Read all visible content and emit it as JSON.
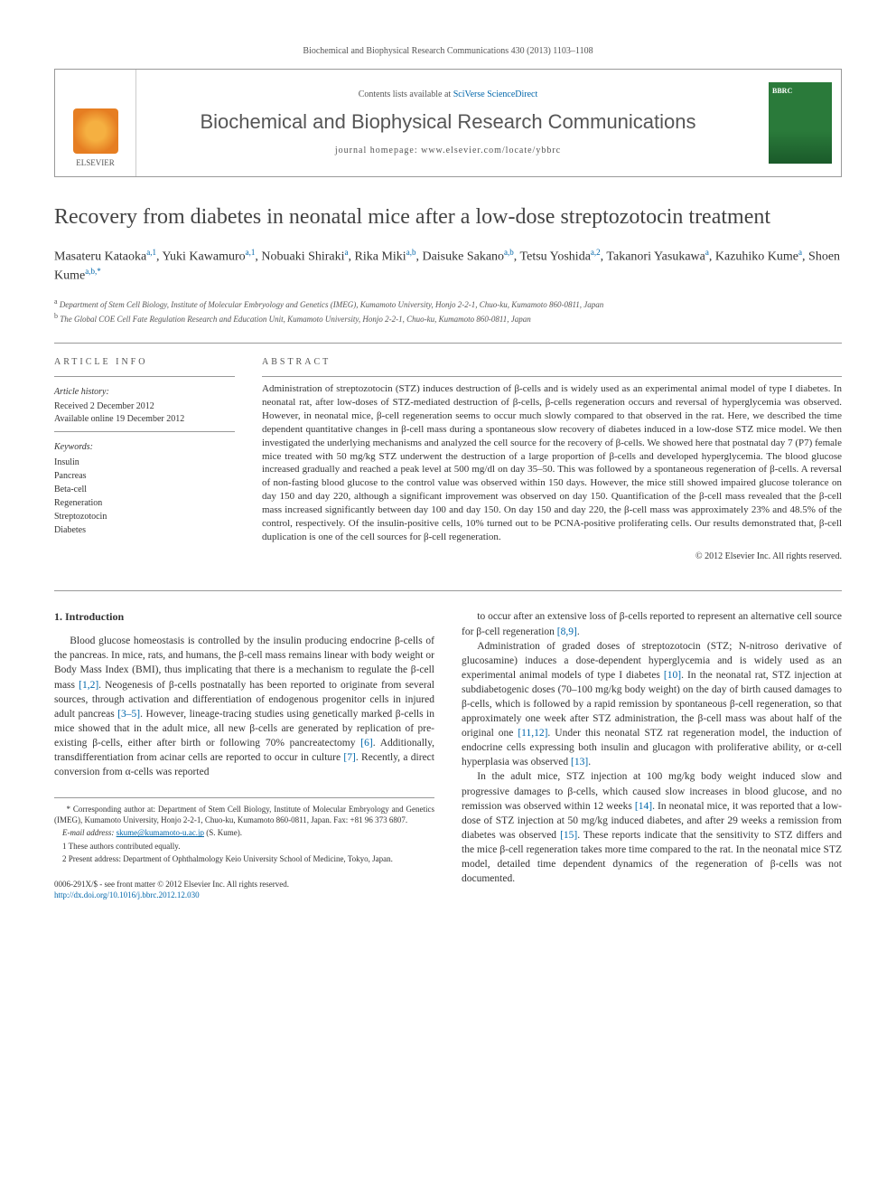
{
  "header": {
    "citation": "Biochemical and Biophysical Research Communications 430 (2013) 1103–1108"
  },
  "masthead": {
    "contents_prefix": "Contents lists available at ",
    "contents_link": "SciVerse ScienceDirect",
    "journal_name": "Biochemical and Biophysical Research Communications",
    "homepage_prefix": "journal homepage: ",
    "homepage_url": "www.elsevier.com/locate/ybbrc",
    "publisher": "ELSEVIER",
    "cover_label": "BBRC"
  },
  "article": {
    "title": "Recovery from diabetes in neonatal mice after a low-dose streptozotocin treatment",
    "authors": [
      {
        "name": "Masateru Kataoka",
        "sup": "a,1"
      },
      {
        "name": "Yuki Kawamuro",
        "sup": "a,1"
      },
      {
        "name": "Nobuaki Shiraki",
        "sup": "a"
      },
      {
        "name": "Rika Miki",
        "sup": "a,b"
      },
      {
        "name": "Daisuke Sakano",
        "sup": "a,b"
      },
      {
        "name": "Tetsu Yoshida",
        "sup": "a,2"
      },
      {
        "name": "Takanori Yasukawa",
        "sup": "a"
      },
      {
        "name": "Kazuhiko Kume",
        "sup": "a"
      },
      {
        "name": "Shoen Kume",
        "sup": "a,b,*"
      }
    ],
    "affiliations": [
      {
        "label": "a",
        "text": "Department of Stem Cell Biology, Institute of Molecular Embryology and Genetics (IMEG), Kumamoto University, Honjo 2-2-1, Chuo-ku, Kumamoto 860-0811, Japan"
      },
      {
        "label": "b",
        "text": "The Global COE Cell Fate Regulation Research and Education Unit, Kumamoto University, Honjo 2-2-1, Chuo-ku, Kumamoto 860-0811, Japan"
      }
    ]
  },
  "info": {
    "heading": "ARTICLE INFO",
    "history_label": "Article history:",
    "received": "Received 2 December 2012",
    "available": "Available online 19 December 2012",
    "keywords_label": "Keywords:",
    "keywords": [
      "Insulin",
      "Pancreas",
      "Beta-cell",
      "Regeneration",
      "Streptozotocin",
      "Diabetes"
    ]
  },
  "abstract": {
    "heading": "ABSTRACT",
    "text": "Administration of streptozotocin (STZ) induces destruction of β-cells and is widely used as an experimental animal model of type I diabetes. In neonatal rat, after low-doses of STZ-mediated destruction of β-cells, β-cells regeneration occurs and reversal of hyperglycemia was observed. However, in neonatal mice, β-cell regeneration seems to occur much slowly compared to that observed in the rat. Here, we described the time dependent quantitative changes in β-cell mass during a spontaneous slow recovery of diabetes induced in a low-dose STZ mice model. We then investigated the underlying mechanisms and analyzed the cell source for the recovery of β-cells. We showed here that postnatal day 7 (P7) female mice treated with 50 mg/kg STZ underwent the destruction of a large proportion of β-cells and developed hyperglycemia. The blood glucose increased gradually and reached a peak level at 500 mg/dl on day 35–50. This was followed by a spontaneous regeneration of β-cells. A reversal of non-fasting blood glucose to the control value was observed within 150 days. However, the mice still showed impaired glucose tolerance on day 150 and day 220, although a significant improvement was observed on day 150. Quantification of the β-cell mass revealed that the β-cell mass increased significantly between day 100 and day 150. On day 150 and day 220, the β-cell mass was approximately 23% and 48.5% of the control, respectively. Of the insulin-positive cells, 10% turned out to be PCNA-positive proliferating cells. Our results demonstrated that, β-cell duplication is one of the cell sources for β-cell regeneration.",
    "copyright": "© 2012 Elsevier Inc. All rights reserved."
  },
  "body": {
    "section_heading": "1. Introduction",
    "col1_p1": "Blood glucose homeostasis is controlled by the insulin producing endocrine β-cells of the pancreas. In mice, rats, and humans, the β-cell mass remains linear with body weight or Body Mass Index (BMI), thus implicating that there is a mechanism to regulate the β-cell mass [1,2]. Neogenesis of β-cells postnatally has been reported to originate from several sources, through activation and differentiation of endogenous progenitor cells in injured adult pancreas [3–5]. However, lineage-tracing studies using genetically marked β-cells in mice showed that in the adult mice, all new β-cells are generated by replication of pre-existing β-cells, either after birth or following 70% pancreatectomy [6]. Additionally, transdifferentiation from acinar cells are reported to occur in culture [7]. Recently, a direct conversion from α-cells was reported",
    "col2_p1": "to occur after an extensive loss of β-cells reported to represent an alternative cell source for β-cell regeneration [8,9].",
    "col2_p2": "Administration of graded doses of streptozotocin (STZ; N-nitroso derivative of glucosamine) induces a dose-dependent hyperglycemia and is widely used as an experimental animal models of type I diabetes [10]. In the neonatal rat, STZ injection at subdiabetogenic doses (70–100 mg/kg body weight) on the day of birth caused damages to β-cells, which is followed by a rapid remission by spontaneous β-cell regeneration, so that approximately one week after STZ administration, the β-cell mass was about half of the original one [11,12]. Under this neonatal STZ rat regeneration model, the induction of endocrine cells expressing both insulin and glucagon with proliferative ability, or α-cell hyperplasia was observed [13].",
    "col2_p3": "In the adult mice, STZ injection at 100 mg/kg body weight induced slow and progressive damages to β-cells, which caused slow increases in blood glucose, and no remission was observed within 12 weeks [14]. In neonatal mice, it was reported that a low-dose of STZ injection at 50 mg/kg induced diabetes, and after 29 weeks a remission from diabetes was observed [15]. These reports indicate that the sensitivity to STZ differs and the mice β-cell regeneration takes more time compared to the rat. In the neonatal mice STZ model, detailed time dependent dynamics of the regeneration of β-cells was not documented."
  },
  "footnotes": {
    "corresponding": "* Corresponding author at: Department of Stem Cell Biology, Institute of Molecular Embryology and Genetics (IMEG), Kumamoto University, Honjo 2-2-1, Chuo-ku, Kumamoto 860-0811, Japan. Fax: +81 96 373 6807.",
    "email_label": "E-mail address: ",
    "email": "skume@kumamoto-u.ac.jp",
    "email_suffix": " (S. Kume).",
    "note1": "1 These authors contributed equally.",
    "note2": "2 Present address: Department of Ophthalmology Keio University School of Medicine, Tokyo, Japan."
  },
  "footer": {
    "issn_line": "0006-291X/$ - see front matter © 2012 Elsevier Inc. All rights reserved.",
    "doi": "http://dx.doi.org/10.1016/j.bbrc.2012.12.030"
  },
  "colors": {
    "link": "#0066aa",
    "text": "#333333",
    "muted": "#555555",
    "rule": "#999999"
  }
}
